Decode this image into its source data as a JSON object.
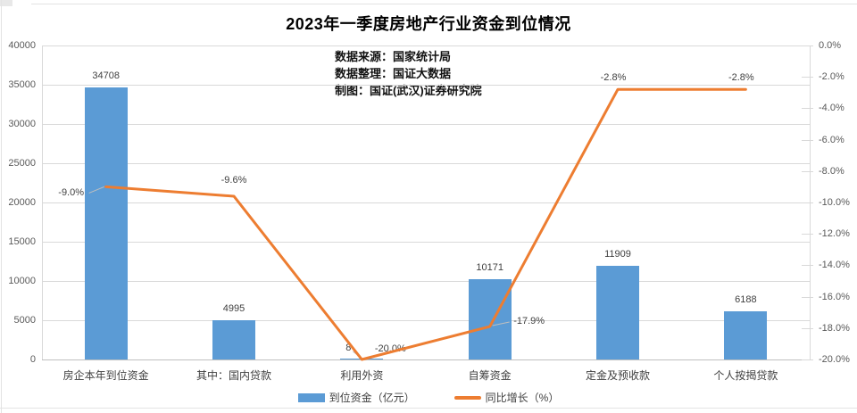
{
  "page": {
    "title": "2023年一季度房地产行业资金到位情况"
  },
  "annotations": {
    "source": "数据来源：国家统计局",
    "compiler": "数据整理：国证大数据",
    "credit": "制图：国证(武汉)证券研究院"
  },
  "chart_data": {
    "type": "bar+line",
    "categories": [
      "房企本年到位资金",
      "其中：国内贷款",
      "利用外资",
      "自筹资金",
      "定金及预收款",
      "个人按揭贷款"
    ],
    "series": [
      {
        "name": "到位资金（亿元）",
        "type": "bar",
        "axis": "left",
        "color": "#5B9BD5",
        "values": [
          34708,
          4995,
          8,
          10171,
          11909,
          6188
        ],
        "labels": [
          "34708",
          "4995",
          "8",
          "10171",
          "11909",
          "6188"
        ]
      },
      {
        "name": "同比增长（%）",
        "type": "line",
        "axis": "right",
        "color": "#ED7D31",
        "values": [
          -9.0,
          -9.6,
          -20.0,
          -17.9,
          -2.8,
          -2.8
        ],
        "labels": [
          "-9.0%",
          "-9.6%",
          "-20.0%",
          "-17.9%",
          "-2.8%",
          "-2.8%"
        ]
      }
    ],
    "left_axis": {
      "min": 0,
      "max": 40000,
      "step": 5000,
      "ticks": [
        "0",
        "5000",
        "10000",
        "15000",
        "20000",
        "25000",
        "30000",
        "35000",
        "40000"
      ]
    },
    "right_axis": {
      "min": -20,
      "max": 0,
      "step": 2,
      "ticks": [
        "0.0%",
        "-2.0%",
        "-4.0%",
        "-6.0%",
        "-8.0%",
        "-10.0%",
        "-12.0%",
        "-14.0%",
        "-16.0%",
        "-18.0%",
        "-20.0%"
      ]
    },
    "grid": true,
    "legend_position": "bottom",
    "legend": [
      {
        "label": "到位资金（亿元）",
        "color": "#5B9BD5",
        "marker": "bar"
      },
      {
        "label": "同比增长（%）",
        "color": "#ED7D31",
        "marker": "line"
      }
    ]
  }
}
